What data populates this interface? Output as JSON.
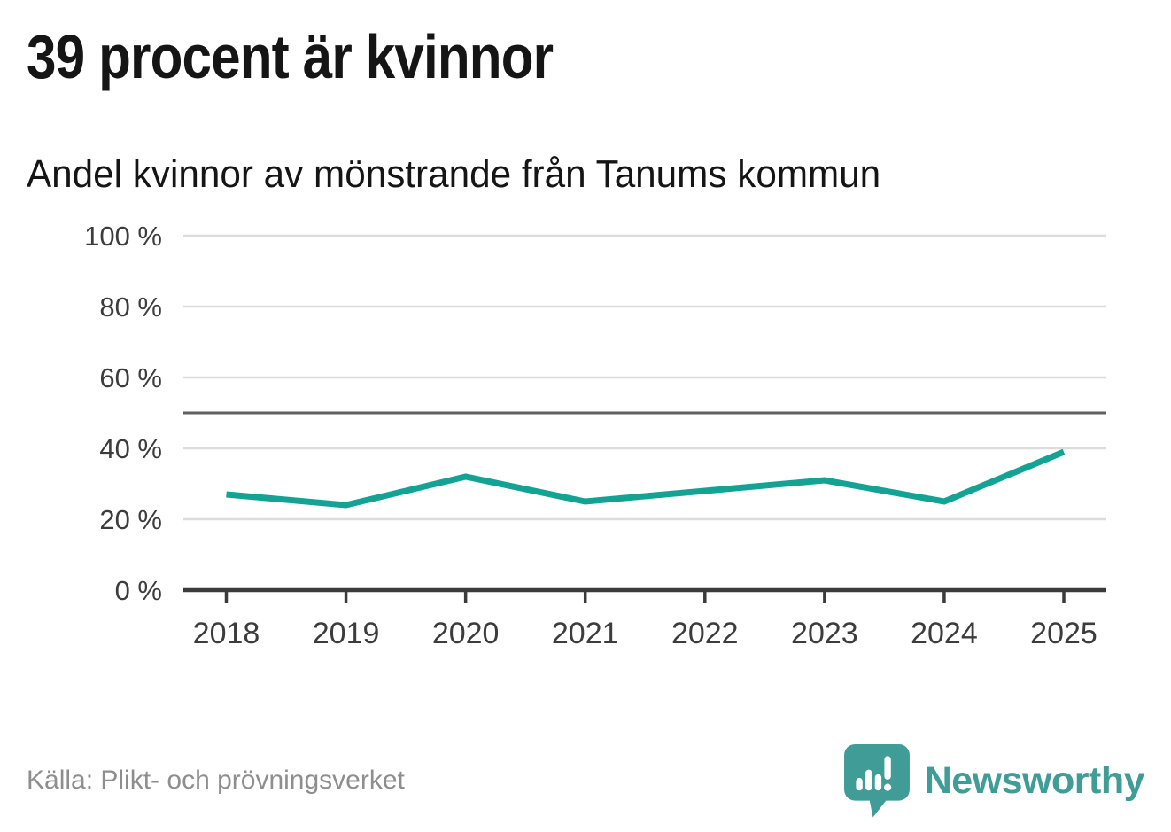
{
  "header": {
    "title": "39 procent är kvinnor",
    "subtitle": "Andel kvinnor av mönstrande från Tanums kommun"
  },
  "chart_data": {
    "type": "line",
    "title": "Andel kvinnor av mönstrande från Tanums kommun",
    "x": [
      2018,
      2019,
      2020,
      2021,
      2022,
      2023,
      2024,
      2025
    ],
    "series": [
      {
        "name": "Andel kvinnor av mönstrande",
        "values": [
          27,
          24,
          32,
          25,
          28,
          31,
          25,
          39
        ]
      }
    ],
    "ylim": [
      0,
      100
    ],
    "yticks": [
      0,
      20,
      40,
      60,
      80,
      100
    ],
    "ytick_suffix": " %",
    "reference_line": 50,
    "grid": "horizontal",
    "legend": "none"
  },
  "footer": {
    "source": "Källa: Plikt- och prövningsverket",
    "brand": "Newsworthy",
    "brand_icon": "newsworthy-speech-bubble-bar-chart-icon"
  },
  "colors": {
    "line": "#12a394",
    "grid": "#dcdcdc",
    "axis": "#3b3b3b",
    "reference": "#606060",
    "tick_text": "#3c3c3c",
    "title_text": "#151515",
    "muted_text": "#8e8e8e",
    "brand": "#3f9c96"
  }
}
